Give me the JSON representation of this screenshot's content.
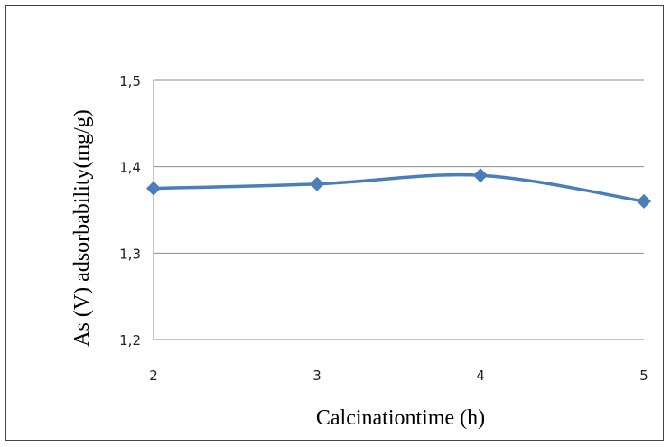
{
  "chart_data": {
    "type": "line",
    "title": "",
    "xlabel": "Calcinationtime (h)",
    "ylabel": "As (V) adsorbability(mg/g)",
    "x": [
      2,
      3,
      4,
      5
    ],
    "x_tick_labels": [
      "2",
      "3",
      "4",
      "5"
    ],
    "y_tick_values": [
      1.2,
      1.3,
      1.4,
      1.5
    ],
    "y_tick_labels": [
      "1,2",
      "1,3",
      "1,4",
      "1,5"
    ],
    "ylim": [
      1.2,
      1.5
    ],
    "grid": "horizontal",
    "legend": "none",
    "series": [
      {
        "values": [
          1.375,
          1.38,
          1.39,
          1.36
        ],
        "color": "#4a7ebb",
        "marker": "diamond",
        "smooth": true
      }
    ],
    "colors": {
      "line": "#4a7ebb",
      "grid": "#8c8c8c",
      "frame": "#444444"
    }
  }
}
